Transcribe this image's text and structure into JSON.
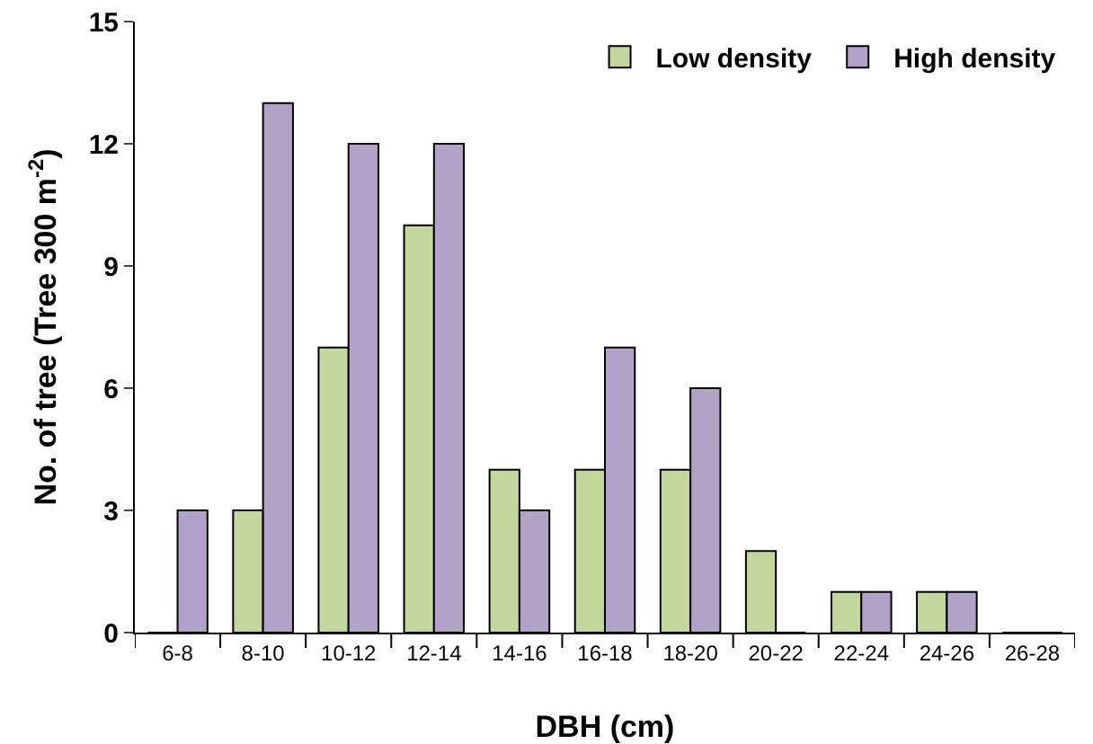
{
  "chart_data": {
    "type": "bar",
    "xlabel": "DBH (cm)",
    "ylabel": "No. of tree (Tree 300 m$^{-2}$)",
    "categories": [
      "6-8",
      "8-10",
      "10-12",
      "12-14",
      "14-16",
      "16-18",
      "18-20",
      "20-22",
      "22-24",
      "24-26",
      "26-28"
    ],
    "series": [
      {
        "name": "Low density",
        "color": "#c3d69b",
        "values": [
          0,
          3,
          7,
          10,
          4,
          4,
          4,
          2,
          1,
          1,
          0
        ]
      },
      {
        "name": "High density",
        "color": "#b3a2c7",
        "values": [
          3,
          13,
          12,
          12,
          3,
          7,
          6,
          0,
          1,
          1,
          0
        ]
      }
    ],
    "ylim": [
      0,
      15
    ],
    "yticks": [
      0,
      3,
      6,
      9,
      12,
      15
    ],
    "grid": false,
    "legend": "top right"
  }
}
